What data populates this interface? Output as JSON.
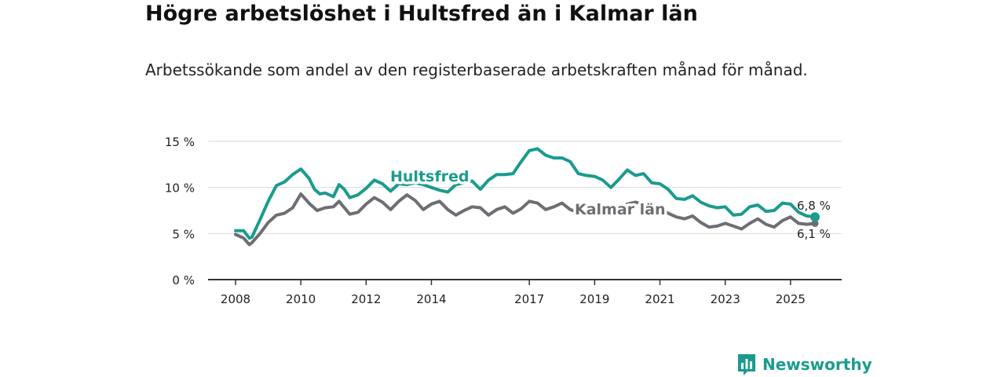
{
  "header": {
    "title": "Högre arbetslöshet i Hultsfred än i Kalmar län",
    "subtitle": "Arbetssökande som andel av den registerbaserade arbetskraften månad för månad."
  },
  "brand": {
    "name": "Newsworthy"
  },
  "chart_data": {
    "type": "line",
    "title": "Högre arbetslöshet i Hultsfred än i Kalmar län",
    "subtitle": "Arbetssökande som andel av den registerbaserade arbetskraften månad för månad.",
    "xlabel": "",
    "ylabel": "",
    "xlim": [
      2008.0,
      2025.75
    ],
    "ylim": [
      0,
      15
    ],
    "y_ticks": [
      0,
      5,
      10,
      15
    ],
    "y_tick_labels": [
      "0 %",
      "5 %",
      "10 %",
      "15 %"
    ],
    "x_ticks": [
      2008,
      2010,
      2012,
      2014,
      2017,
      2019,
      2021,
      2023,
      2025
    ],
    "x_tick_labels": [
      "2008",
      "2010",
      "2012",
      "2014",
      "2017",
      "2019",
      "2021",
      "2023",
      "2025"
    ],
    "grid": true,
    "series": [
      {
        "name": "Hultsfred",
        "color": "#1a9b8e",
        "label": "Hultsfred",
        "end_label": "6,8 %",
        "end_value": 6.8,
        "points": [
          [
            2008.0,
            5.3
          ],
          [
            2008.25,
            5.3
          ],
          [
            2008.42,
            4.5
          ],
          [
            2008.5,
            4.6
          ],
          [
            2008.75,
            6.5
          ],
          [
            2009.0,
            8.5
          ],
          [
            2009.25,
            10.2
          ],
          [
            2009.5,
            10.6
          ],
          [
            2009.75,
            11.4
          ],
          [
            2010.0,
            12.0
          ],
          [
            2010.25,
            11.0
          ],
          [
            2010.42,
            9.8
          ],
          [
            2010.58,
            9.3
          ],
          [
            2010.75,
            9.4
          ],
          [
            2011.0,
            9.0
          ],
          [
            2011.17,
            10.3
          ],
          [
            2011.33,
            9.8
          ],
          [
            2011.5,
            8.9
          ],
          [
            2011.75,
            9.2
          ],
          [
            2012.0,
            9.9
          ],
          [
            2012.25,
            10.8
          ],
          [
            2012.5,
            10.4
          ],
          [
            2012.75,
            9.6
          ],
          [
            2013.0,
            10.4
          ],
          [
            2013.25,
            10.3
          ],
          [
            2013.5,
            10.5
          ],
          [
            2013.75,
            10.3
          ],
          [
            2014.0,
            10.0
          ],
          [
            2014.25,
            9.7
          ],
          [
            2014.5,
            9.5
          ],
          [
            2014.75,
            10.3
          ],
          [
            2015.0,
            10.5
          ],
          [
            2015.25,
            10.7
          ],
          [
            2015.5,
            9.8
          ],
          [
            2015.75,
            10.8
          ],
          [
            2016.0,
            11.4
          ],
          [
            2016.25,
            11.4
          ],
          [
            2016.5,
            11.5
          ],
          [
            2016.75,
            12.8
          ],
          [
            2017.0,
            14.0
          ],
          [
            2017.25,
            14.2
          ],
          [
            2017.5,
            13.5
          ],
          [
            2017.75,
            13.2
          ],
          [
            2018.0,
            13.2
          ],
          [
            2018.25,
            12.8
          ],
          [
            2018.5,
            11.5
          ],
          [
            2018.75,
            11.3
          ],
          [
            2019.0,
            11.2
          ],
          [
            2019.25,
            10.8
          ],
          [
            2019.5,
            10.0
          ],
          [
            2019.75,
            10.9
          ],
          [
            2020.0,
            11.9
          ],
          [
            2020.25,
            11.3
          ],
          [
            2020.5,
            11.5
          ],
          [
            2020.75,
            10.5
          ],
          [
            2021.0,
            10.4
          ],
          [
            2021.25,
            9.8
          ],
          [
            2021.5,
            8.8
          ],
          [
            2021.75,
            8.7
          ],
          [
            2022.0,
            9.1
          ],
          [
            2022.25,
            8.4
          ],
          [
            2022.5,
            8.0
          ],
          [
            2022.75,
            7.8
          ],
          [
            2023.0,
            7.9
          ],
          [
            2023.25,
            7.0
          ],
          [
            2023.5,
            7.1
          ],
          [
            2023.75,
            7.9
          ],
          [
            2024.0,
            8.1
          ],
          [
            2024.25,
            7.4
          ],
          [
            2024.5,
            7.5
          ],
          [
            2024.75,
            8.3
          ],
          [
            2025.0,
            8.2
          ],
          [
            2025.25,
            7.3
          ],
          [
            2025.5,
            6.9
          ],
          [
            2025.75,
            6.8
          ]
        ]
      },
      {
        "name": "Kalmar län",
        "color": "#6e6d73",
        "label": "Kalmar län",
        "end_label": "6,1 %",
        "end_value": 6.1,
        "points": [
          [
            2008.0,
            4.9
          ],
          [
            2008.25,
            4.5
          ],
          [
            2008.42,
            3.8
          ],
          [
            2008.5,
            4.0
          ],
          [
            2008.75,
            5.0
          ],
          [
            2009.0,
            6.2
          ],
          [
            2009.25,
            7.0
          ],
          [
            2009.5,
            7.2
          ],
          [
            2009.75,
            7.8
          ],
          [
            2010.0,
            9.3
          ],
          [
            2010.25,
            8.3
          ],
          [
            2010.5,
            7.5
          ],
          [
            2010.75,
            7.8
          ],
          [
            2011.0,
            7.9
          ],
          [
            2011.17,
            8.5
          ],
          [
            2011.5,
            7.1
          ],
          [
            2011.75,
            7.3
          ],
          [
            2012.0,
            8.2
          ],
          [
            2012.25,
            8.9
          ],
          [
            2012.5,
            8.4
          ],
          [
            2012.75,
            7.6
          ],
          [
            2013.0,
            8.5
          ],
          [
            2013.25,
            9.2
          ],
          [
            2013.5,
            8.6
          ],
          [
            2013.75,
            7.6
          ],
          [
            2014.0,
            8.2
          ],
          [
            2014.25,
            8.5
          ],
          [
            2014.5,
            7.6
          ],
          [
            2014.75,
            7.0
          ],
          [
            2015.0,
            7.5
          ],
          [
            2015.25,
            7.9
          ],
          [
            2015.5,
            7.8
          ],
          [
            2015.75,
            7.0
          ],
          [
            2016.0,
            7.6
          ],
          [
            2016.25,
            7.9
          ],
          [
            2016.5,
            7.2
          ],
          [
            2016.75,
            7.7
          ],
          [
            2017.0,
            8.5
          ],
          [
            2017.25,
            8.3
          ],
          [
            2017.5,
            7.6
          ],
          [
            2017.75,
            7.9
          ],
          [
            2018.0,
            8.3
          ],
          [
            2018.25,
            7.6
          ],
          [
            2018.5,
            7.3
          ],
          [
            2018.75,
            7.6
          ],
          [
            2019.0,
            7.9
          ],
          [
            2019.25,
            7.7
          ],
          [
            2019.5,
            7.4
          ],
          [
            2019.75,
            7.3
          ],
          [
            2020.0,
            8.2
          ],
          [
            2020.25,
            8.4
          ],
          [
            2020.5,
            8.2
          ],
          [
            2020.75,
            7.8
          ],
          [
            2021.0,
            7.8
          ],
          [
            2021.25,
            7.2
          ],
          [
            2021.5,
            6.8
          ],
          [
            2021.75,
            6.6
          ],
          [
            2022.0,
            6.9
          ],
          [
            2022.25,
            6.2
          ],
          [
            2022.5,
            5.7
          ],
          [
            2022.75,
            5.8
          ],
          [
            2023.0,
            6.1
          ],
          [
            2023.25,
            5.8
          ],
          [
            2023.5,
            5.5
          ],
          [
            2023.75,
            6.1
          ],
          [
            2024.0,
            6.6
          ],
          [
            2024.25,
            6.0
          ],
          [
            2024.5,
            5.7
          ],
          [
            2024.75,
            6.4
          ],
          [
            2025.0,
            6.8
          ],
          [
            2025.25,
            6.1
          ],
          [
            2025.5,
            6.0
          ],
          [
            2025.75,
            6.1
          ]
        ]
      }
    ]
  }
}
